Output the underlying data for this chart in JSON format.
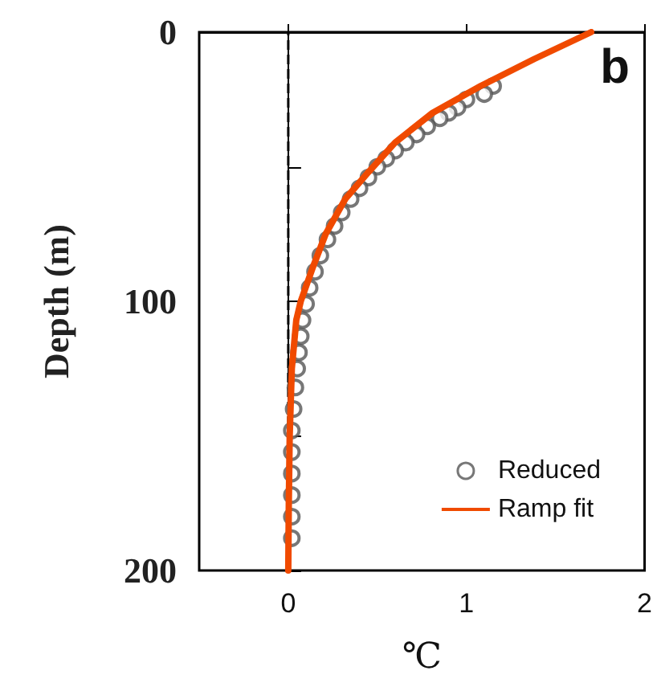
{
  "chart_data": {
    "type": "scatter",
    "ylabel": "Depth (m)",
    "xlabel": "℃",
    "annotations": [
      "b"
    ],
    "xlim": [
      -0.5,
      2
    ],
    "xticks": [
      0,
      1,
      2
    ],
    "ylim": [
      200,
      0
    ],
    "yticks": [
      0,
      {
        "value": 50,
        "label": null
      },
      100,
      {
        "value": 150,
        "label": null
      },
      200
    ],
    "grid": false,
    "legend": "bottom right",
    "marker": "circle",
    "ref_lines": [
      {
        "axis": "x",
        "value": 0,
        "color": "#000000",
        "line_style": "dashed"
      }
    ],
    "series": [
      {
        "name": "Reduced",
        "color": "#555555",
        "x": [
          1.15,
          1.1,
          1.0,
          0.95,
          0.9,
          0.85,
          0.78,
          0.72,
          0.66,
          0.6,
          0.55,
          0.5,
          0.45,
          0.4,
          0.35,
          0.3,
          0.26,
          0.22,
          0.18,
          0.15,
          0.12,
          0.1,
          0.08,
          0.07,
          0.06,
          0.05,
          0.04,
          0.03,
          0.02,
          0.02,
          0.02,
          0.02,
          0.02,
          0.02
        ],
        "values": [
          20,
          23,
          25,
          28,
          30,
          32,
          35,
          38,
          41,
          44,
          47,
          50,
          54,
          58,
          62,
          67,
          72,
          77,
          83,
          89,
          95,
          101,
          107,
          113,
          119,
          125,
          132,
          140,
          148,
          156,
          164,
          172,
          180,
          188
        ]
      },
      {
        "name": "Ramp fit",
        "type": "line",
        "color": "#f04a00",
        "marker": "none",
        "line_style": "solid",
        "x": [
          0,
          0.003,
          0.008,
          0.02,
          0.045,
          0.07,
          0.14,
          0.21,
          0.32,
          0.45,
          0.6,
          0.81,
          1.08,
          1.38,
          1.7
        ],
        "values": [
          200,
          175,
          150,
          125,
          107,
          100,
          87,
          75,
          62,
          52,
          41,
          30,
          20,
          10,
          0
        ]
      }
    ]
  }
}
